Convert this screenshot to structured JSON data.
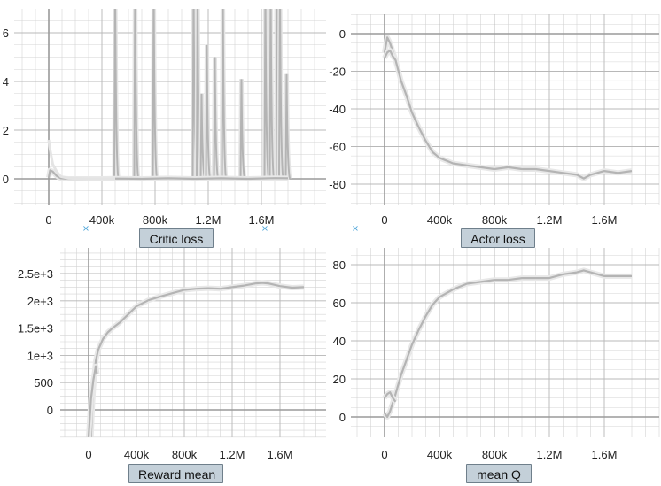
{
  "colors": {
    "grid": "#d4d4d4",
    "gridMajor": "#b8b8b8",
    "axis": "#9a9a9a",
    "smoothed": "#b4b4b4",
    "raw": "#e4e4e4",
    "button_bg": "#c4d0d9"
  },
  "icons": {
    "grid_marker": "×"
  },
  "chart_data": [
    {
      "id": "critic",
      "type": "line",
      "title": "Critic loss",
      "x_ticks": [
        "0",
        "400k",
        "800k",
        "1.2M",
        "1.6M"
      ],
      "x_tick_values": [
        0,
        400000,
        800000,
        1200000,
        1600000
      ],
      "y_ticks": [
        "0",
        "2",
        "4",
        "6"
      ],
      "y_tick_values": [
        0,
        2,
        4,
        6
      ],
      "xlim": [
        -220000,
        1850000
      ],
      "ylim": [
        -1.1,
        7.3
      ],
      "grid": true,
      "series": [
        {
          "style": "smoothed",
          "x": [
            0,
            10000,
            30000,
            60000,
            90000,
            150000,
            400000,
            500000,
            700000,
            900000,
            1100000,
            1300000,
            1500000,
            1700000,
            1800000
          ],
          "y": [
            0.05,
            0.35,
            0.3,
            0.12,
            0.02,
            0.0,
            0.0,
            0.01,
            0.0,
            0.02,
            0.0,
            0.02,
            0.0,
            0.03,
            0.02
          ]
        },
        {
          "style": "raw",
          "x": [
            0,
            10000,
            30000,
            60000,
            90000,
            150000,
            300000,
            500000
          ],
          "y": [
            1.6,
            1.2,
            0.6,
            0.3,
            0.1,
            0.02,
            0.0,
            0.0
          ]
        }
      ],
      "spikes": [
        {
          "x": 500000,
          "peak": 8.0
        },
        {
          "x": 650000,
          "peak": 8.0
        },
        {
          "x": 790000,
          "peak": 8.0
        },
        {
          "x": 1090000,
          "peak": 8.0
        },
        {
          "x": 1120000,
          "peak": 8.0
        },
        {
          "x": 1150000,
          "peak": 3.5
        },
        {
          "x": 1190000,
          "peak": 5.5
        },
        {
          "x": 1250000,
          "peak": 5.0
        },
        {
          "x": 1310000,
          "peak": 8.0
        },
        {
          "x": 1450000,
          "peak": 4.1
        },
        {
          "x": 1630000,
          "peak": 8.0
        },
        {
          "x": 1670000,
          "peak": 8.0
        },
        {
          "x": 1720000,
          "peak": 8.0
        },
        {
          "x": 1740000,
          "peak": 8.0
        },
        {
          "x": 1790000,
          "peak": 4.3
        }
      ]
    },
    {
      "id": "actor",
      "type": "line",
      "title": "Actor loss",
      "x_ticks": [
        "0",
        "400k",
        "800k",
        "1.2M",
        "1.6M"
      ],
      "x_tick_values": [
        0,
        400000,
        800000,
        1200000,
        1600000
      ],
      "y_ticks": [
        "0",
        "-20",
        "-40",
        "-60",
        "-80"
      ],
      "y_tick_values": [
        0,
        -20,
        -40,
        -60,
        -80
      ],
      "xlim": [
        -220000,
        1850000
      ],
      "ylim": [
        -90,
        5
      ],
      "grid": true,
      "series": [
        {
          "style": "smoothed",
          "x": [
            0,
            20000,
            40000,
            80000,
            120000,
            160000,
            200000,
            250000,
            300000,
            350000,
            400000,
            500000,
            600000,
            700000,
            800000,
            900000,
            1000000,
            1100000,
            1200000,
            1300000,
            1400000,
            1450000,
            1500000,
            1600000,
            1700000,
            1800000
          ],
          "y": [
            -10,
            -2,
            -5,
            -14,
            -25,
            -33,
            -42,
            -50,
            -57,
            -63,
            -66,
            -69,
            -70,
            -71,
            -72,
            -71,
            -72,
            -72,
            -73,
            -74,
            -75,
            -77,
            -75,
            -73,
            -74,
            -73
          ]
        },
        {
          "style": "smoothed",
          "x": [
            0,
            20000,
            40000,
            60000,
            80000
          ],
          "y": [
            -13,
            -10,
            -9,
            -12,
            -14
          ]
        }
      ]
    },
    {
      "id": "reward",
      "type": "line",
      "title": "Reward mean",
      "x_ticks": [
        "0",
        "400k",
        "800k",
        "1.2M",
        "1.6M"
      ],
      "x_tick_values": [
        0,
        400000,
        800000,
        1200000,
        1600000
      ],
      "y_ticks": [
        "0",
        "500",
        "1e+3",
        "1.5e+3",
        "2e+3",
        "2.5e+3"
      ],
      "y_tick_values": [
        0,
        500,
        1000,
        1500,
        2000,
        2500
      ],
      "xlim": [
        -220000,
        1850000
      ],
      "ylim": [
        -500,
        3000
      ],
      "grid": true,
      "series": [
        {
          "style": "smoothed",
          "x": [
            20000,
            30000,
            40000,
            50000,
            60000,
            80000,
            120000,
            160000,
            200000,
            260000,
            330000,
            400000,
            500000,
            600000,
            700000,
            800000,
            900000,
            1000000,
            1100000,
            1200000,
            1300000,
            1400000,
            1450000,
            1500000,
            1600000,
            1700000,
            1800000
          ],
          "y": [
            -500,
            0,
            400,
            700,
            900,
            1100,
            1300,
            1420,
            1500,
            1600,
            1750,
            1900,
            2010,
            2080,
            2140,
            2200,
            2220,
            2230,
            2220,
            2250,
            2280,
            2320,
            2330,
            2320,
            2270,
            2240,
            2250
          ]
        },
        {
          "style": "smoothed",
          "x": [
            0,
            20000,
            40000,
            60000,
            70000
          ],
          "y": [
            -500,
            200,
            550,
            800,
            650
          ]
        }
      ]
    },
    {
      "id": "meanq",
      "type": "line",
      "title": "mean Q",
      "x_ticks": [
        "0",
        "400k",
        "800k",
        "1.2M",
        "1.6M"
      ],
      "x_tick_values": [
        0,
        400000,
        800000,
        1200000,
        1600000
      ],
      "y_ticks": [
        "0",
        "20",
        "40",
        "60",
        "80"
      ],
      "y_tick_values": [
        0,
        20,
        40,
        60,
        80
      ],
      "xlim": [
        -220000,
        1850000
      ],
      "ylim": [
        -10,
        90
      ],
      "grid": true,
      "series": [
        {
          "style": "smoothed",
          "x": [
            0,
            20000,
            40000,
            80000,
            120000,
            160000,
            200000,
            250000,
            300000,
            350000,
            400000,
            500000,
            600000,
            700000,
            800000,
            900000,
            1000000,
            1100000,
            1200000,
            1300000,
            1400000,
            1450000,
            1500000,
            1600000,
            1700000,
            1800000
          ],
          "y": [
            2,
            0,
            3,
            12,
            22,
            30,
            38,
            46,
            53,
            59,
            63,
            67,
            70,
            71,
            72,
            72,
            73,
            73,
            73,
            75,
            76,
            77,
            76,
            74,
            74,
            74
          ]
        },
        {
          "style": "smoothed",
          "x": [
            0,
            20000,
            40000,
            60000,
            80000
          ],
          "y": [
            10,
            12,
            13,
            10,
            8
          ]
        }
      ]
    }
  ]
}
